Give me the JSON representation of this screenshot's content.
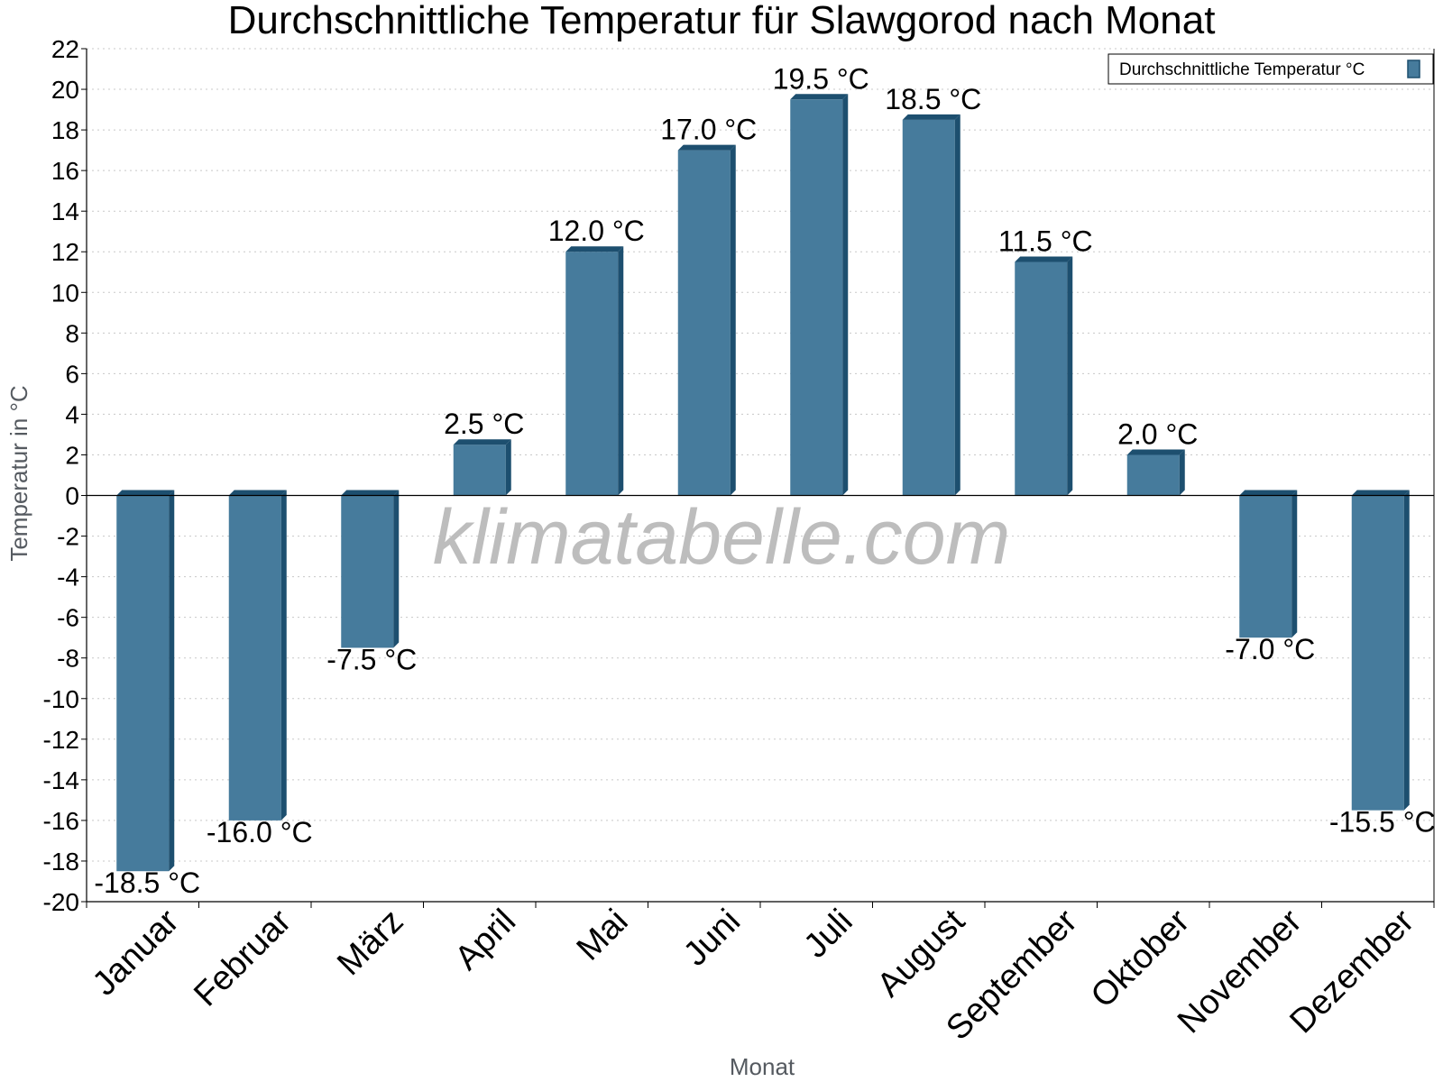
{
  "chart_data": {
    "type": "bar",
    "title": "Durchschnittliche Temperatur für Slawgorod nach Monat",
    "xlabel": "Monat",
    "ylabel": "Temperatur in °C",
    "categories": [
      "Januar",
      "Februar",
      "März",
      "April",
      "Mai",
      "Juni",
      "Juli",
      "August",
      "September",
      "Oktober",
      "November",
      "Dezember"
    ],
    "series": [
      {
        "name": "Durchschnittliche Temperatur °C",
        "values": [
          -18.5,
          -16.0,
          -7.5,
          2.5,
          12.0,
          17.0,
          19.5,
          18.5,
          11.5,
          2.0,
          -7.0,
          -15.5
        ],
        "labels": [
          "-18.5 °C",
          "-16.0 °C",
          "-7.5 °C",
          "2.5 °C",
          "12.0 °C",
          "17.0 °C",
          "19.5 °C",
          "18.5 °C",
          "11.5 °C",
          "2.0 °C",
          "-7.0 °C",
          "-15.5 °C"
        ]
      }
    ],
    "ylim": [
      -20,
      22
    ],
    "yticks": [
      "22",
      "20",
      "18",
      "16",
      "14",
      "12",
      "10",
      "8",
      "6",
      "4",
      "2",
      "0",
      "-2",
      "-4",
      "-6",
      "-8",
      "-10",
      "-12",
      "-14",
      "-16",
      "-18",
      "-20"
    ],
    "grid": true,
    "legend_position": "top-right",
    "colors": {
      "bar": "#467b9c",
      "bar_side": "#1d4f6f",
      "grid": "#c8c8c8"
    },
    "watermark": "klimatabelle.com"
  }
}
